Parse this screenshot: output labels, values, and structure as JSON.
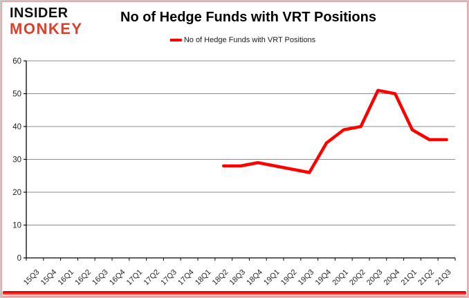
{
  "logo": {
    "line1": "INSIDER",
    "line2": "MONKEY",
    "accent_color": "#d9412c"
  },
  "title": "No of Hedge Funds with VRT Positions",
  "legend": {
    "label": "No of Hedge Funds with VRT Positions",
    "line_color": "#ff0000"
  },
  "chart_data": {
    "type": "line",
    "title": "No of Hedge Funds with VRT Positions",
    "categories": [
      "15Q3",
      "15Q4",
      "16Q1",
      "16Q2",
      "16Q3",
      "16Q4",
      "17Q1",
      "17Q2",
      "17Q3",
      "17Q4",
      "18Q1",
      "18Q2",
      "18Q3",
      "18Q4",
      "19Q1",
      "19Q2",
      "19Q3",
      "19Q4",
      "20Q1",
      "20Q2",
      "20Q3",
      "20Q4",
      "21Q1",
      "21Q2",
      "21Q3"
    ],
    "series": [
      {
        "name": "No of Hedge Funds with VRT Positions",
        "color": "#ff0000",
        "values": [
          null,
          null,
          null,
          null,
          null,
          null,
          null,
          null,
          null,
          null,
          null,
          28,
          28,
          29,
          28,
          27,
          26,
          35,
          39,
          40,
          51,
          50,
          39,
          36,
          36
        ]
      }
    ],
    "ylim": [
      0,
      60
    ],
    "yticks": [
      0,
      10,
      20,
      30,
      40,
      50,
      60
    ],
    "grid": true,
    "legend_position": "top",
    "axis_color": "#000000",
    "gridline_color": "#8c8c8c",
    "tick_label_color": "#1f1f1f"
  }
}
